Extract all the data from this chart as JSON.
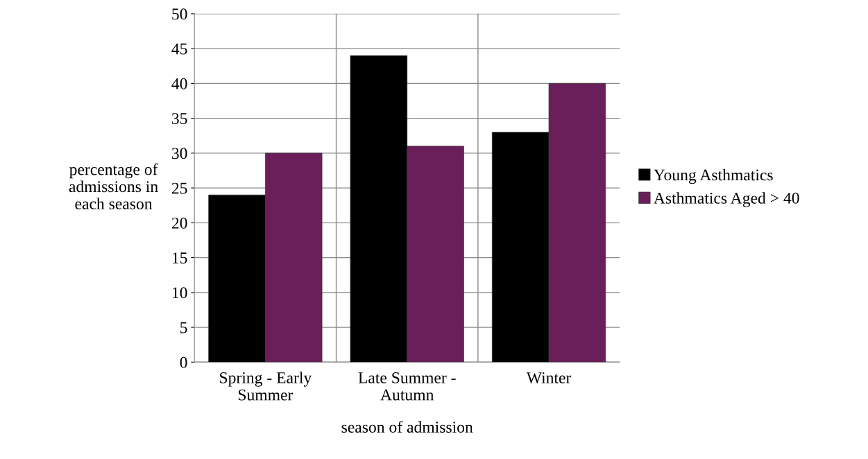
{
  "chart_data": {
    "type": "bar",
    "xlabel": "season of admission",
    "ylabel": "percentage of\nadmissions in\neach season",
    "categories": [
      "Spring - Early\nSummer",
      "Late Summer -\nAutumn",
      "Winter"
    ],
    "series": [
      {
        "name": "Young Asthmatics",
        "color": "#000000",
        "values": [
          24,
          44,
          33
        ]
      },
      {
        "name": "Asthmatics Aged > 40",
        "color": "#6b1f5a",
        "values": [
          30,
          31,
          40
        ]
      }
    ],
    "ylim": [
      0,
      50
    ],
    "yticks": [
      0,
      5,
      10,
      15,
      20,
      25,
      30,
      35,
      40,
      45,
      50
    ],
    "grid": true,
    "legend": "right"
  }
}
